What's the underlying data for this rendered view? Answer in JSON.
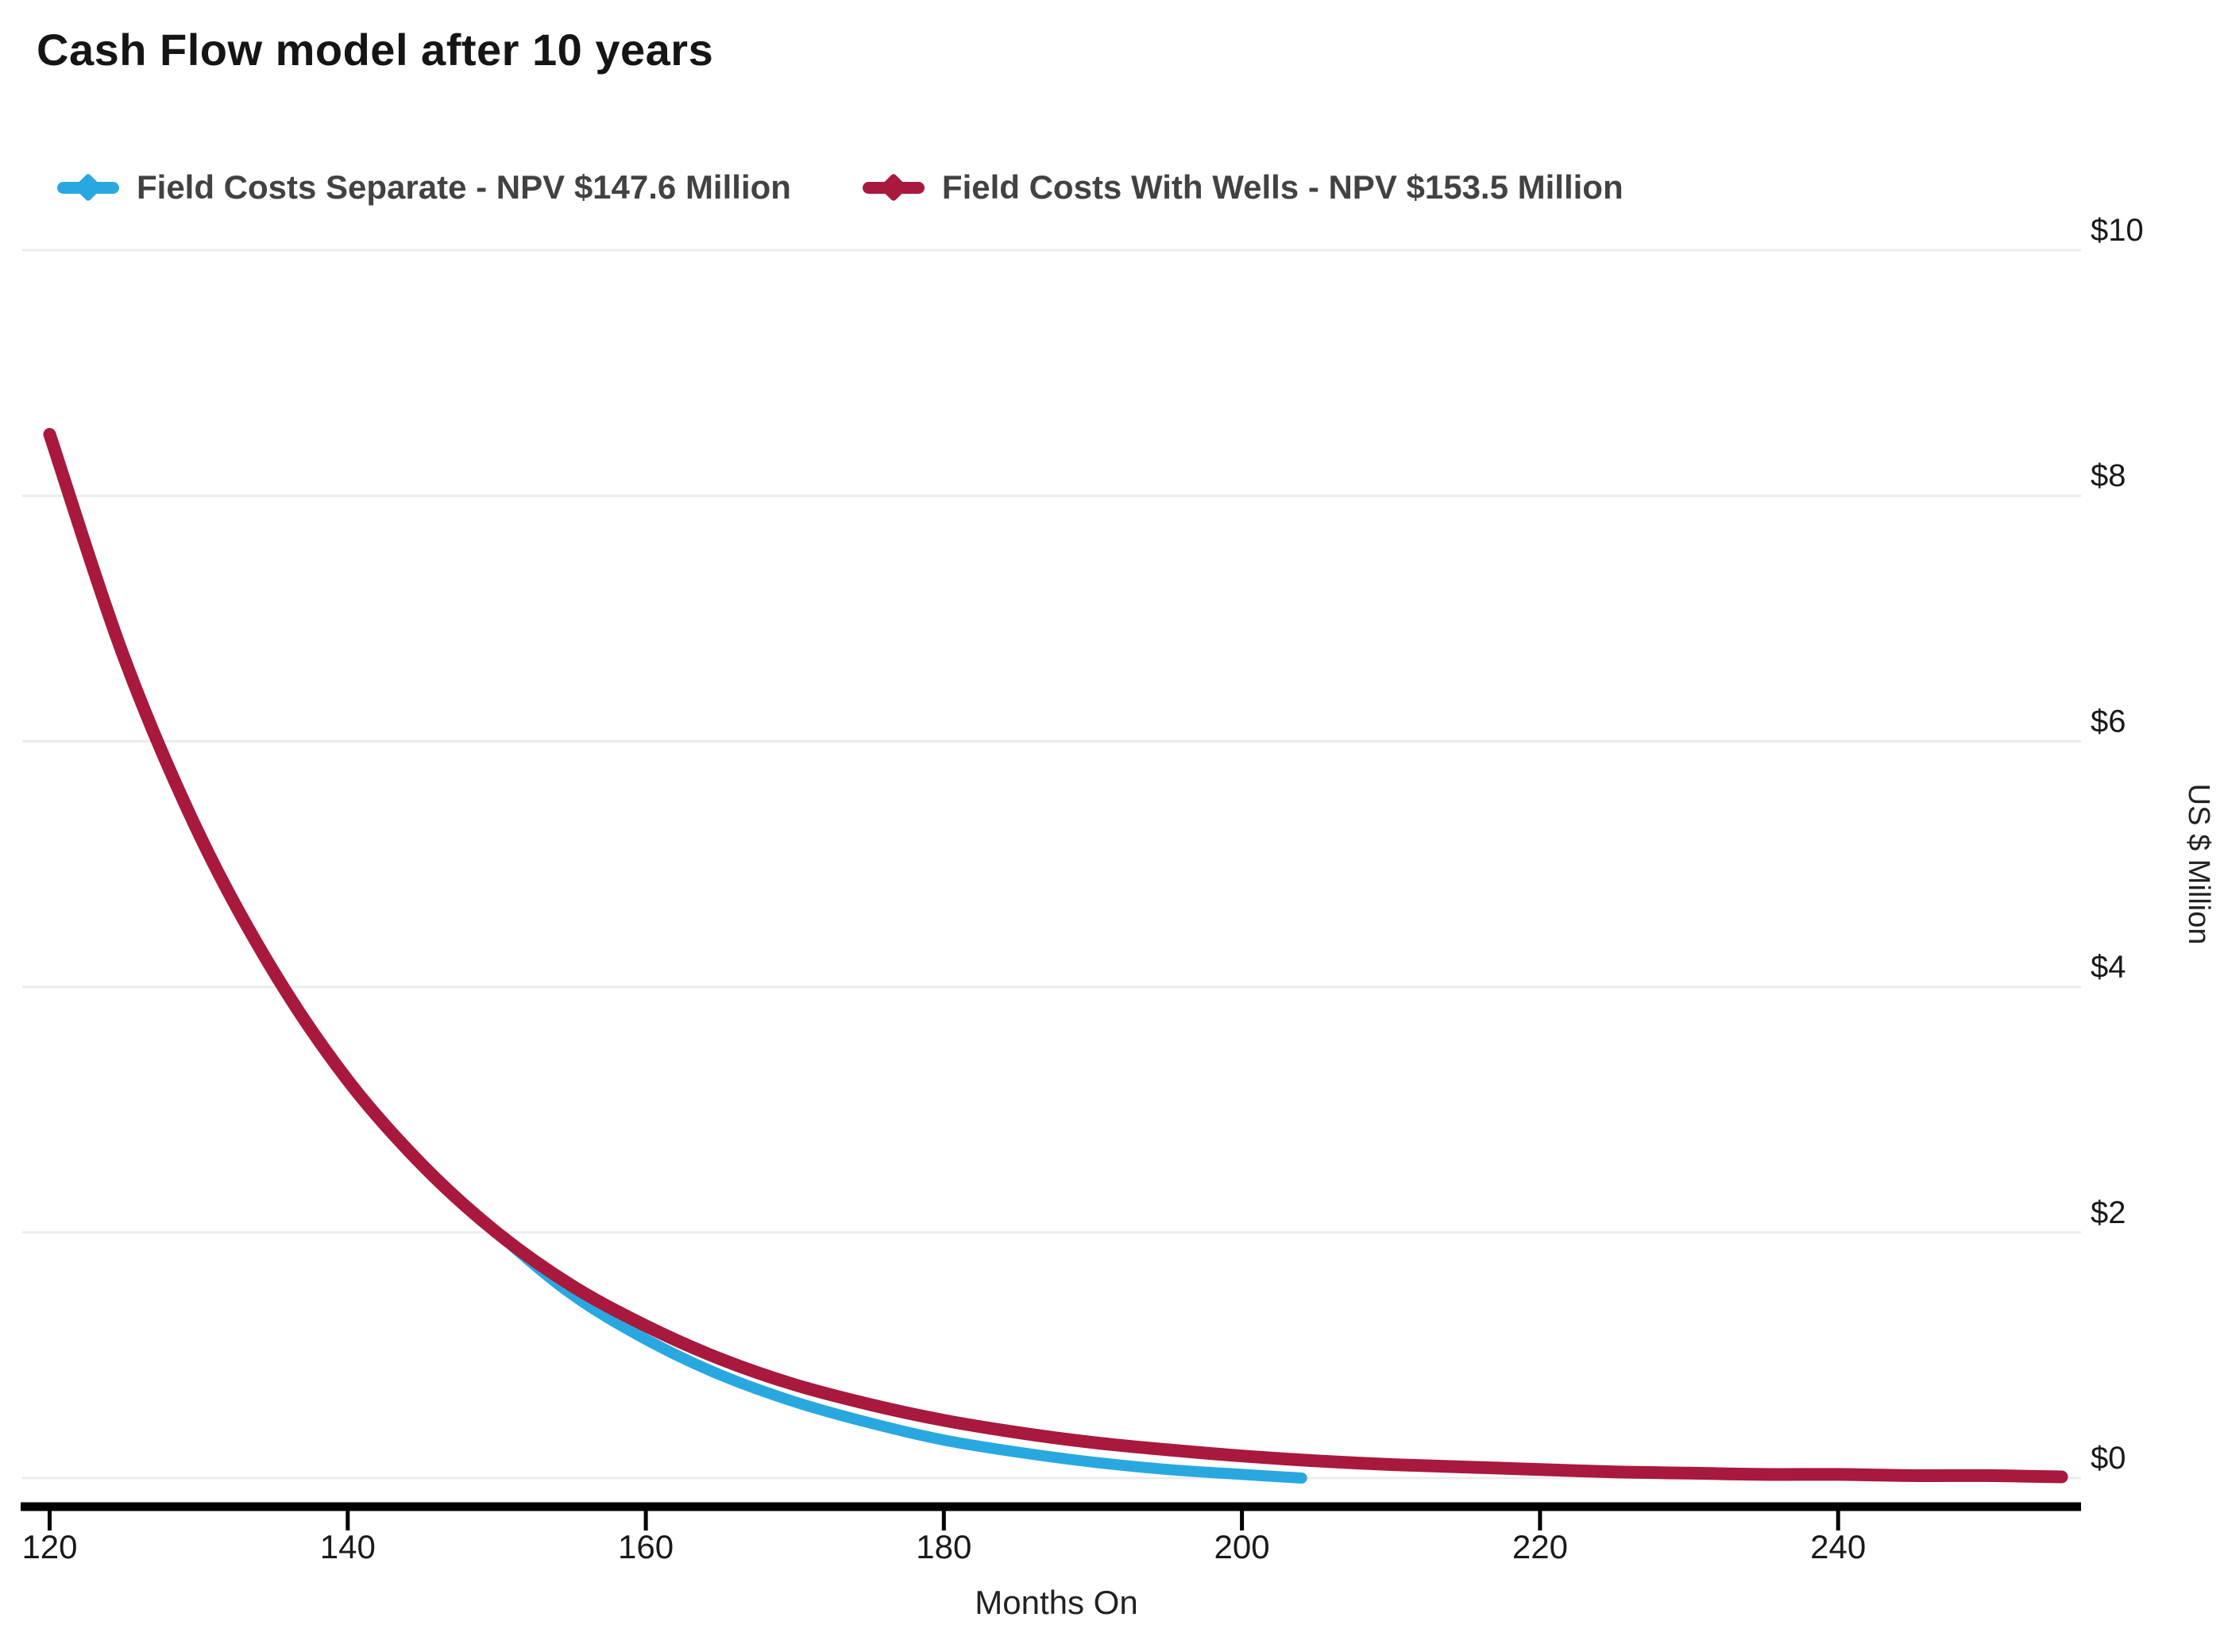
{
  "title": "Cash Flow model after 10 years",
  "chart_data": {
    "type": "line",
    "title": "Cash Flow model after 10 years",
    "xlabel": "Months On",
    "ylabel": "US $ Million",
    "xlim": [
      118.8,
      256.3
    ],
    "ylim": [
      0,
      10
    ],
    "xticks": [
      120,
      140,
      160,
      180,
      200,
      220,
      240
    ],
    "yticks": [
      0,
      2,
      4,
      6,
      8,
      10
    ],
    "ytick_prefix": "$",
    "grid": "horizontal",
    "legend_position": "top-left",
    "series": [
      {
        "name": "Field Costs Separate - NPV $147.6 Million",
        "color": "#29a8e0",
        "stroke_width": 14,
        "x": [
          120,
          125,
          130,
          135,
          140,
          145,
          150,
          155,
          160,
          165,
          170,
          175,
          180,
          185,
          190,
          195,
          200,
          204
        ],
        "values": [
          8.5,
          6.68,
          5.25,
          4.13,
          3.24,
          2.55,
          2.0,
          1.5,
          1.13,
          0.84,
          0.62,
          0.45,
          0.31,
          0.21,
          0.13,
          0.07,
          0.03,
          0.0
        ]
      },
      {
        "name": "Field Costs With Wells - NPV $153.5 Million",
        "color": "#a8193d",
        "stroke_width": 16,
        "x": [
          120,
          125,
          130,
          135,
          140,
          145,
          150,
          155,
          160,
          165,
          170,
          175,
          180,
          185,
          190,
          195,
          200,
          205,
          210,
          215,
          220,
          225,
          230,
          235,
          240,
          245,
          250,
          255
        ],
        "values": [
          8.5,
          6.68,
          5.25,
          4.13,
          3.24,
          2.55,
          2.0,
          1.57,
          1.24,
          0.97,
          0.76,
          0.6,
          0.47,
          0.37,
          0.29,
          0.23,
          0.18,
          0.14,
          0.11,
          0.09,
          0.07,
          0.05,
          0.04,
          0.03,
          0.03,
          0.02,
          0.02,
          0.01
        ]
      }
    ]
  }
}
